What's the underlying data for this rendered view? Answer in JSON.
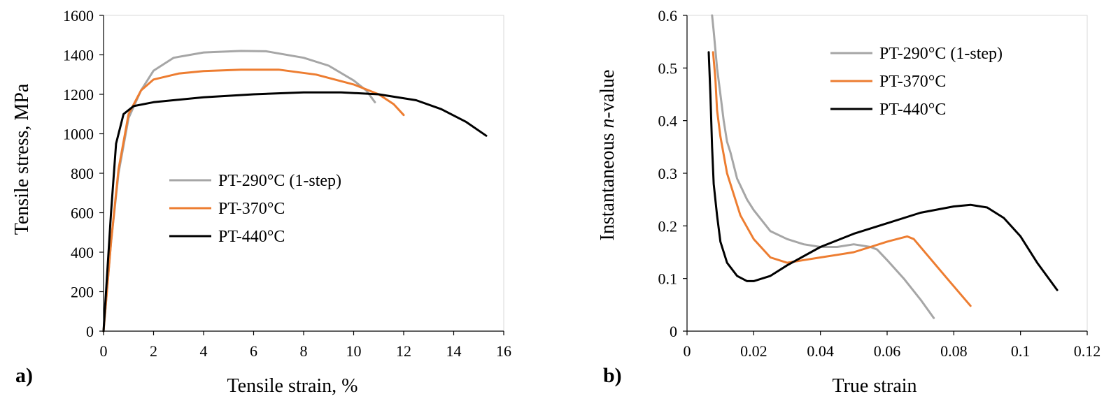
{
  "chart_data": [
    {
      "type": "line",
      "panel_label": "a)",
      "xlabel": "Tensile strain, %",
      "ylabel": "Tensile stress, MPa",
      "xlim": [
        0,
        16
      ],
      "ylim": [
        0,
        1600
      ],
      "xticks": [
        "0",
        "2",
        "4",
        "6",
        "8",
        "10",
        "12",
        "14",
        "16"
      ],
      "yticks": [
        "0",
        "200",
        "400",
        "600",
        "800",
        "1000",
        "1200",
        "1400",
        "1600"
      ],
      "grid": false,
      "legend_position": "center",
      "series": [
        {
          "name": "PT-290°C (1-step)",
          "color": "#a6a6a6",
          "points": [
            [
              0,
              0
            ],
            [
              0.3,
              450
            ],
            [
              0.6,
              800
            ],
            [
              1.0,
              1080
            ],
            [
              1.5,
              1220
            ],
            [
              2.0,
              1320
            ],
            [
              2.8,
              1385
            ],
            [
              4.0,
              1412
            ],
            [
              5.5,
              1420
            ],
            [
              6.5,
              1418
            ],
            [
              8.0,
              1385
            ],
            [
              9.0,
              1345
            ],
            [
              10.0,
              1270
            ],
            [
              10.5,
              1220
            ],
            [
              10.85,
              1160
            ]
          ]
        },
        {
          "name": "PT-370°C",
          "color": "#ed7d31",
          "points": [
            [
              0,
              0
            ],
            [
              0.3,
              450
            ],
            [
              0.6,
              820
            ],
            [
              1.0,
              1100
            ],
            [
              1.5,
              1220
            ],
            [
              2.0,
              1275
            ],
            [
              3.0,
              1305
            ],
            [
              4.0,
              1318
            ],
            [
              5.5,
              1325
            ],
            [
              7.0,
              1325
            ],
            [
              8.5,
              1300
            ],
            [
              10.0,
              1250
            ],
            [
              11.0,
              1200
            ],
            [
              11.6,
              1150
            ],
            [
              12.0,
              1095
            ]
          ]
        },
        {
          "name": "PT-440°C",
          "color": "#000000",
          "points": [
            [
              0,
              0
            ],
            [
              0.3,
              600
            ],
            [
              0.5,
              950
            ],
            [
              0.8,
              1100
            ],
            [
              1.2,
              1140
            ],
            [
              2.0,
              1160
            ],
            [
              4.0,
              1185
            ],
            [
              6.0,
              1200
            ],
            [
              8.0,
              1210
            ],
            [
              9.5,
              1210
            ],
            [
              11.0,
              1200
            ],
            [
              12.5,
              1170
            ],
            [
              13.5,
              1125
            ],
            [
              14.5,
              1060
            ],
            [
              15.3,
              990
            ]
          ]
        }
      ]
    },
    {
      "type": "line",
      "panel_label": "b)",
      "xlabel": "True strain",
      "ylabel_prefix": "Instantaneous ",
      "ylabel_italic": "n",
      "ylabel_suffix": "-value",
      "xlim": [
        0,
        0.12
      ],
      "ylim": [
        0,
        0.6
      ],
      "xticks": [
        "0",
        "0.02",
        "0.04",
        "0.06",
        "0.08",
        "0.1",
        "0.12"
      ],
      "yticks": [
        "0",
        "0.1",
        "0.2",
        "0.3",
        "0.4",
        "0.5",
        "0.6"
      ],
      "grid": false,
      "legend_position": "top-right",
      "series": [
        {
          "name": "PT-290°C (1-step)",
          "color": "#a6a6a6",
          "points": [
            [
              0.0075,
              0.6
            ],
            [
              0.008,
              0.57
            ],
            [
              0.009,
              0.5
            ],
            [
              0.01,
              0.45
            ],
            [
              0.011,
              0.4
            ],
            [
              0.012,
              0.36
            ],
            [
              0.013,
              0.34
            ],
            [
              0.015,
              0.29
            ],
            [
              0.018,
              0.25
            ],
            [
              0.02,
              0.23
            ],
            [
              0.025,
              0.19
            ],
            [
              0.03,
              0.175
            ],
            [
              0.035,
              0.165
            ],
            [
              0.04,
              0.16
            ],
            [
              0.045,
              0.16
            ],
            [
              0.05,
              0.165
            ],
            [
              0.055,
              0.16
            ],
            [
              0.057,
              0.155
            ],
            [
              0.06,
              0.135
            ],
            [
              0.065,
              0.1
            ],
            [
              0.07,
              0.06
            ],
            [
              0.074,
              0.025
            ]
          ]
        },
        {
          "name": "PT-370°C",
          "color": "#ed7d31",
          "points": [
            [
              0.0078,
              0.53
            ],
            [
              0.0085,
              0.48
            ],
            [
              0.009,
              0.42
            ],
            [
              0.01,
              0.37
            ],
            [
              0.012,
              0.3
            ],
            [
              0.014,
              0.26
            ],
            [
              0.016,
              0.22
            ],
            [
              0.02,
              0.175
            ],
            [
              0.025,
              0.14
            ],
            [
              0.03,
              0.13
            ],
            [
              0.035,
              0.135
            ],
            [
              0.04,
              0.14
            ],
            [
              0.045,
              0.145
            ],
            [
              0.05,
              0.15
            ],
            [
              0.055,
              0.16
            ],
            [
              0.06,
              0.17
            ],
            [
              0.066,
              0.18
            ],
            [
              0.068,
              0.175
            ],
            [
              0.072,
              0.145
            ],
            [
              0.078,
              0.1
            ],
            [
              0.085,
              0.048
            ]
          ]
        },
        {
          "name": "PT-440°C",
          "color": "#000000",
          "points": [
            [
              0.0065,
              0.53
            ],
            [
              0.007,
              0.45
            ],
            [
              0.0075,
              0.35
            ],
            [
              0.008,
              0.28
            ],
            [
              0.009,
              0.22
            ],
            [
              0.01,
              0.17
            ],
            [
              0.012,
              0.13
            ],
            [
              0.015,
              0.105
            ],
            [
              0.018,
              0.095
            ],
            [
              0.02,
              0.095
            ],
            [
              0.025,
              0.105
            ],
            [
              0.03,
              0.125
            ],
            [
              0.04,
              0.16
            ],
            [
              0.05,
              0.185
            ],
            [
              0.06,
              0.205
            ],
            [
              0.07,
              0.225
            ],
            [
              0.08,
              0.237
            ],
            [
              0.085,
              0.24
            ],
            [
              0.09,
              0.235
            ],
            [
              0.095,
              0.215
            ],
            [
              0.1,
              0.18
            ],
            [
              0.105,
              0.13
            ],
            [
              0.111,
              0.078
            ]
          ]
        }
      ]
    }
  ]
}
